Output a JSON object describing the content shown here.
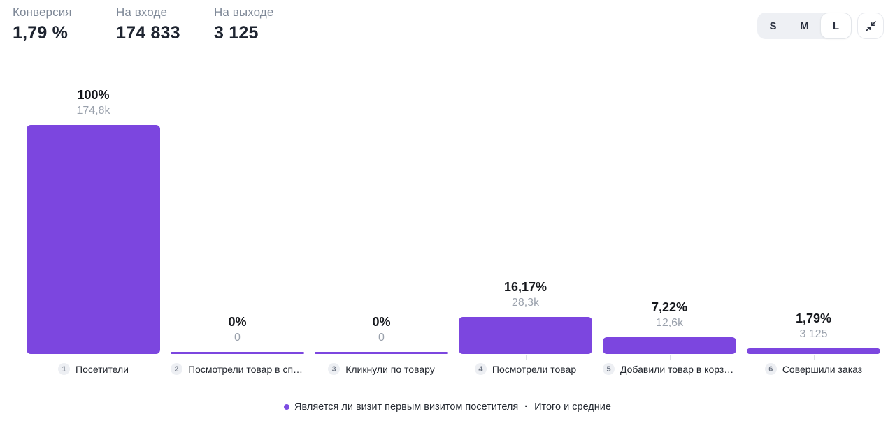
{
  "header": {
    "stats": [
      {
        "label": "Конверсия",
        "value": "1,79 %"
      },
      {
        "label": "На входе",
        "value": "174 833"
      },
      {
        "label": "На выходе",
        "value": "3 125"
      }
    ],
    "size_switcher": {
      "options": [
        "S",
        "M",
        "L"
      ],
      "selected": "L"
    },
    "collapse_button_icon": "collapse-arrows-icon"
  },
  "chart_data": {
    "type": "bar",
    "subtype": "funnel",
    "title": "",
    "categories": [
      "Посетители",
      "Посмотрели товар в списке",
      "Кликнули по товару",
      "Посмотрели товар",
      "Добавили товар в корзину",
      "Совершили заказ"
    ],
    "step_numbers": [
      "1",
      "2",
      "3",
      "4",
      "5",
      "6"
    ],
    "series": [
      {
        "name": "Является ли визит первым визитом посетителя",
        "percent_values": [
          100,
          0,
          0,
          16.17,
          7.22,
          1.79
        ],
        "percent_labels": [
          "100%",
          "0%",
          "0%",
          "16,17%",
          "7,22%",
          "1,79%"
        ],
        "counts": [
          174833,
          0,
          0,
          28300,
          12600,
          3125
        ],
        "count_labels": [
          "174,8k",
          "0",
          "0",
          "28,3k",
          "12,6k",
          "3 125"
        ]
      }
    ],
    "ylim": [
      0,
      100
    ],
    "grid": false,
    "legend_position": "bottom-center",
    "bar_color": "#7c46df"
  },
  "legend": {
    "series_label": "Является ли визит первым визитом посетителя",
    "separator": "·",
    "totals_label": "Итого и средние"
  },
  "colors": {
    "bar": "#7c46df",
    "percent_text": "#15171c",
    "count_text": "#9aa1ac",
    "stat_label": "#7e8897",
    "stat_value": "#1e2430"
  }
}
